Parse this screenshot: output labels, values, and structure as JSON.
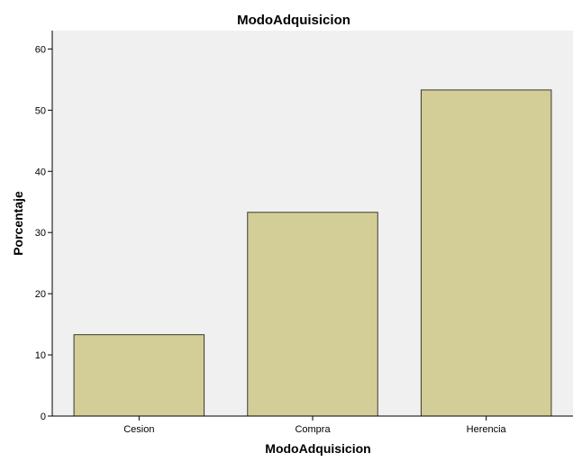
{
  "chart_data": {
    "type": "bar",
    "title": "ModoAdquisicion",
    "xlabel": "ModoAdquisicion",
    "ylabel": "Porcentaje",
    "categories": [
      "Cesion",
      "Compra",
      "Herencia"
    ],
    "values": [
      13.3,
      33.3,
      53.3
    ],
    "ylim": [
      0,
      63
    ],
    "yticks": [
      "0",
      "10",
      "20",
      "30",
      "40",
      "50",
      "60"
    ],
    "grid": false,
    "legend": "none",
    "colors": {
      "bar_fill": "#d3cd97",
      "bar_stroke": "#3a3a2e",
      "plot_background": "#f0f0f0",
      "axis": "#000000"
    }
  }
}
